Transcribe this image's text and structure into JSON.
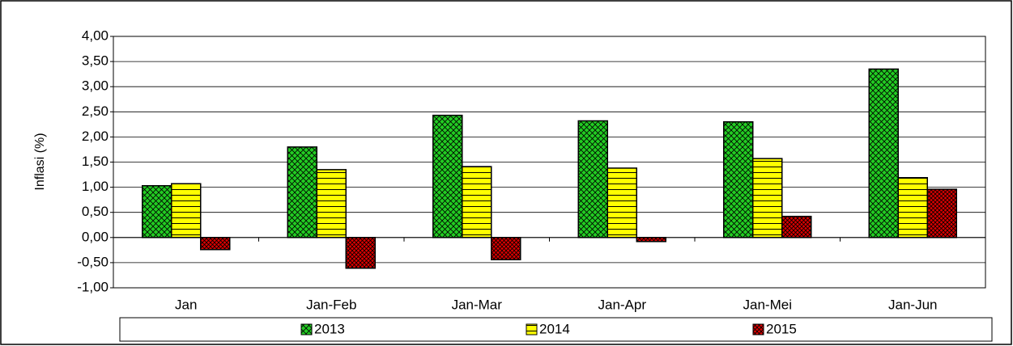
{
  "chart_data": {
    "type": "bar",
    "y_label": "Inflasi (%)",
    "categories": [
      "Jan",
      "Jan-Feb",
      "Jan-Mar",
      "Jan-Apr",
      "Jan-Mei",
      "Jan-Jun"
    ],
    "series": [
      {
        "name": "2013",
        "color": "#22cc22",
        "values": [
          1.03,
          1.8,
          2.43,
          2.32,
          2.3,
          3.35
        ]
      },
      {
        "name": "2014",
        "color": "#ffff00",
        "values": [
          1.07,
          1.35,
          1.41,
          1.38,
          1.57,
          1.19
        ]
      },
      {
        "name": "2015",
        "color": "#dd0000",
        "values": [
          -0.24,
          -0.61,
          -0.44,
          -0.08,
          0.42,
          0.96
        ]
      }
    ],
    "ylim": [
      -1,
      4
    ],
    "yticks": [
      {
        "value": -1,
        "label": "-1,00"
      },
      {
        "value": -0.5,
        "label": "-0,50"
      },
      {
        "value": 0,
        "label": "0,00"
      },
      {
        "value": 0.5,
        "label": "0,50"
      },
      {
        "value": 1,
        "label": "1,00"
      },
      {
        "value": 1.5,
        "label": "1,50"
      },
      {
        "value": 2,
        "label": "2,00"
      },
      {
        "value": 2.5,
        "label": "2,50"
      },
      {
        "value": 3,
        "label": "3,00"
      },
      {
        "value": 3.5,
        "label": "3,50"
      },
      {
        "value": 4,
        "label": "4,00"
      }
    ],
    "grid": true
  }
}
